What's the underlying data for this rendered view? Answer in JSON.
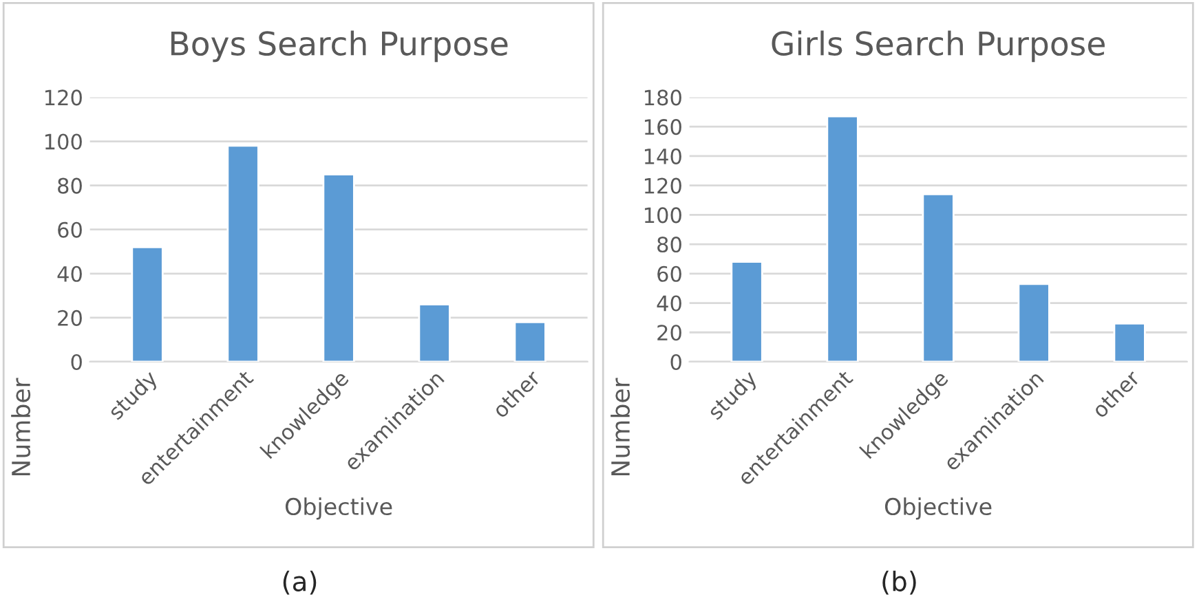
{
  "chart_data": [
    {
      "type": "bar",
      "title": "Boys Search Purpose",
      "xlabel": "Objective",
      "ylabel": "Number",
      "categories": [
        "study",
        "entertainment",
        "knowledge",
        "examination",
        "other"
      ],
      "values": [
        52,
        98,
        85,
        26,
        18
      ],
      "color": "#5b9bd5",
      "ylim": [
        0,
        120
      ],
      "yticks": [
        0,
        20,
        40,
        60,
        80,
        100,
        120
      ],
      "grid": "y",
      "annotations": [
        "(a)"
      ]
    },
    {
      "type": "bar",
      "title": "Girls Search Purpose",
      "xlabel": "Objective",
      "ylabel": "Number",
      "categories": [
        "study",
        "entertainment",
        "knowledge",
        "examination",
        "other"
      ],
      "values": [
        68,
        167,
        114,
        53,
        26
      ],
      "color": "#5b9bd5",
      "ylim": [
        0,
        180
      ],
      "yticks": [
        0,
        20,
        40,
        60,
        80,
        100,
        120,
        140,
        160,
        180
      ],
      "grid": "y",
      "annotations": [
        "(b)"
      ]
    }
  ]
}
